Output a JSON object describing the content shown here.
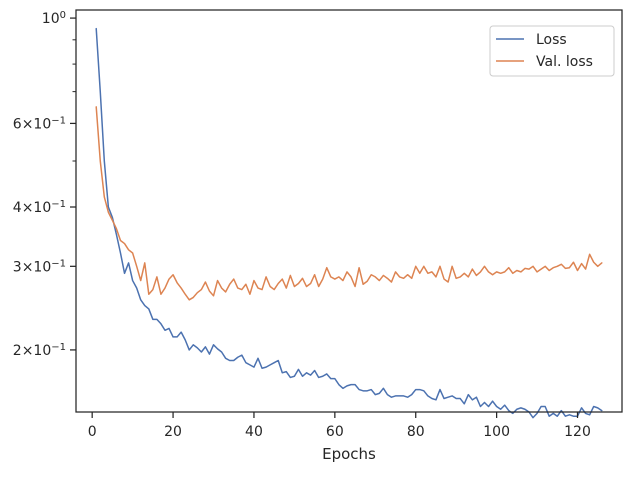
{
  "chart_data": {
    "type": "line",
    "xlabel": "Epochs",
    "ylabel": "",
    "yscale": "log",
    "xlim": [
      -4,
      131
    ],
    "ylim": [
      0.148,
      1.04
    ],
    "xticks": [
      0,
      20,
      40,
      60,
      80,
      100,
      120
    ],
    "yticks_major": [
      {
        "value": 1.0,
        "base": "10",
        "exp": "0",
        "mant": ""
      },
      {
        "value": 0.6,
        "base": "10",
        "exp": "−1",
        "mant": "6"
      },
      {
        "value": 0.4,
        "base": "10",
        "exp": "−1",
        "mant": "4"
      },
      {
        "value": 0.3,
        "base": "10",
        "exp": "−1",
        "mant": "3"
      },
      {
        "value": 0.2,
        "base": "10",
        "exp": "−1",
        "mant": "2"
      }
    ],
    "yticks_minor": [
      0.9,
      0.8,
      0.7,
      0.5
    ],
    "grid": false,
    "legend_position": "upper right",
    "series": [
      {
        "name": "Loss",
        "color": "#4c72b0",
        "x": [
          1,
          2,
          3,
          4,
          5,
          6,
          7,
          8,
          9,
          10,
          11,
          12,
          13,
          14,
          15,
          16,
          17,
          18,
          19,
          20,
          21,
          22,
          23,
          24,
          25,
          26,
          27,
          28,
          29,
          30,
          31,
          32,
          33,
          34,
          35,
          36,
          37,
          38,
          39,
          40,
          41,
          42,
          43,
          44,
          45,
          46,
          47,
          48,
          49,
          50,
          51,
          52,
          53,
          54,
          55,
          56,
          57,
          58,
          59,
          60,
          61,
          62,
          63,
          64,
          65,
          66,
          67,
          68,
          69,
          70,
          71,
          72,
          73,
          74,
          75,
          76,
          77,
          78,
          79,
          80,
          81,
          82,
          83,
          84,
          85,
          86,
          87,
          88,
          89,
          90,
          91,
          92,
          93,
          94,
          95,
          96,
          97,
          98,
          99,
          100,
          101,
          102,
          103,
          104,
          105,
          106,
          107,
          108,
          109,
          110,
          111,
          112,
          113,
          114,
          115,
          116,
          117,
          118,
          119,
          120,
          121,
          122,
          123,
          124,
          125,
          126
        ],
        "y": [
          0.95,
          0.7,
          0.5,
          0.4,
          0.38,
          0.35,
          0.32,
          0.29,
          0.305,
          0.28,
          0.27,
          0.255,
          0.248,
          0.244,
          0.232,
          0.232,
          0.227,
          0.22,
          0.222,
          0.213,
          0.213,
          0.218,
          0.21,
          0.2,
          0.205,
          0.202,
          0.198,
          0.203,
          0.196,
          0.205,
          0.201,
          0.198,
          0.192,
          0.19,
          0.19,
          0.193,
          0.195,
          0.188,
          0.186,
          0.184,
          0.192,
          0.183,
          0.184,
          0.186,
          0.188,
          0.19,
          0.179,
          0.18,
          0.175,
          0.176,
          0.182,
          0.176,
          0.179,
          0.177,
          0.181,
          0.175,
          0.176,
          0.178,
          0.174,
          0.174,
          0.169,
          0.166,
          0.168,
          0.169,
          0.169,
          0.165,
          0.164,
          0.164,
          0.165,
          0.161,
          0.162,
          0.166,
          0.161,
          0.159,
          0.16,
          0.16,
          0.16,
          0.159,
          0.161,
          0.165,
          0.165,
          0.164,
          0.16,
          0.158,
          0.157,
          0.165,
          0.158,
          0.159,
          0.16,
          0.158,
          0.158,
          0.154,
          0.161,
          0.157,
          0.159,
          0.152,
          0.155,
          0.152,
          0.156,
          0.152,
          0.15,
          0.153,
          0.149,
          0.147,
          0.15,
          0.151,
          0.15,
          0.148,
          0.144,
          0.147,
          0.152,
          0.152,
          0.145,
          0.147,
          0.145,
          0.149,
          0.145,
          0.146,
          0.145,
          0.145,
          0.151,
          0.147,
          0.146,
          0.152,
          0.151,
          0.149
        ]
      },
      {
        "name": "Val. loss",
        "color": "#dd8452",
        "x": [
          1,
          2,
          3,
          4,
          5,
          6,
          7,
          8,
          9,
          10,
          11,
          12,
          13,
          14,
          15,
          16,
          17,
          18,
          19,
          20,
          21,
          22,
          23,
          24,
          25,
          26,
          27,
          28,
          29,
          30,
          31,
          32,
          33,
          34,
          35,
          36,
          37,
          38,
          39,
          40,
          41,
          42,
          43,
          44,
          45,
          46,
          47,
          48,
          49,
          50,
          51,
          52,
          53,
          54,
          55,
          56,
          57,
          58,
          59,
          60,
          61,
          62,
          63,
          64,
          65,
          66,
          67,
          68,
          69,
          70,
          71,
          72,
          73,
          74,
          75,
          76,
          77,
          78,
          79,
          80,
          81,
          82,
          83,
          84,
          85,
          86,
          87,
          88,
          89,
          90,
          91,
          92,
          93,
          94,
          95,
          96,
          97,
          98,
          99,
          100,
          101,
          102,
          103,
          104,
          105,
          106,
          107,
          108,
          109,
          110,
          111,
          112,
          113,
          114,
          115,
          116,
          117,
          118,
          119,
          120,
          121,
          122,
          123,
          124,
          125,
          126
        ],
        "y": [
          0.65,
          0.5,
          0.42,
          0.39,
          0.375,
          0.36,
          0.34,
          0.335,
          0.325,
          0.32,
          0.3,
          0.28,
          0.305,
          0.262,
          0.268,
          0.285,
          0.262,
          0.27,
          0.282,
          0.288,
          0.277,
          0.27,
          0.262,
          0.255,
          0.258,
          0.264,
          0.268,
          0.278,
          0.266,
          0.26,
          0.28,
          0.27,
          0.265,
          0.275,
          0.282,
          0.27,
          0.268,
          0.275,
          0.262,
          0.28,
          0.27,
          0.268,
          0.285,
          0.272,
          0.268,
          0.276,
          0.282,
          0.27,
          0.287,
          0.272,
          0.276,
          0.283,
          0.272,
          0.276,
          0.288,
          0.272,
          0.282,
          0.298,
          0.285,
          0.282,
          0.285,
          0.28,
          0.292,
          0.285,
          0.272,
          0.298,
          0.275,
          0.279,
          0.288,
          0.285,
          0.28,
          0.287,
          0.283,
          0.278,
          0.292,
          0.285,
          0.283,
          0.288,
          0.283,
          0.3,
          0.29,
          0.3,
          0.29,
          0.292,
          0.285,
          0.3,
          0.282,
          0.278,
          0.3,
          0.283,
          0.285,
          0.29,
          0.285,
          0.296,
          0.287,
          0.292,
          0.3,
          0.292,
          0.288,
          0.292,
          0.29,
          0.292,
          0.298,
          0.29,
          0.294,
          0.292,
          0.297,
          0.296,
          0.3,
          0.292,
          0.296,
          0.3,
          0.294,
          0.298,
          0.3,
          0.303,
          0.297,
          0.298,
          0.306,
          0.294,
          0.304,
          0.296,
          0.318,
          0.306,
          0.3,
          0.305
        ]
      }
    ]
  }
}
